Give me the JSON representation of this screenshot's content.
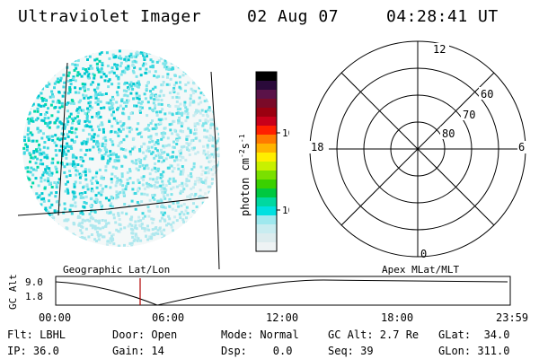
{
  "header": {
    "title": "Ultraviolet Imager",
    "date": "02 Aug 07",
    "time": "04:28:41 UT"
  },
  "colorbar": {
    "unit_label": "photon cm",
    "unit_sup1": "-2",
    "unit_mid": "s",
    "unit_sup2": "-1",
    "ticks": [
      "100",
      "10"
    ],
    "colors": [
      "#000000",
      "#2a0a3a",
      "#5a1248",
      "#7a0a28",
      "#9a0010",
      "#c8001a",
      "#ff2000",
      "#ff7a00",
      "#ffb400",
      "#ffee00",
      "#c8f000",
      "#7ae000",
      "#3ad000",
      "#00c840",
      "#00d8a0",
      "#00e0e0",
      "#9ee8ee",
      "#c8ecf0",
      "#dcecee",
      "#eef3f4"
    ]
  },
  "polar": {
    "lat_labels": [
      "60",
      "70",
      "80"
    ],
    "mlt_labels": {
      "top": "12",
      "left": "18",
      "right": "6",
      "bottom": "0"
    }
  },
  "altitude_plot": {
    "title_left": "Geographic Lat/Lon",
    "title_right": "Apex MLat/MLT",
    "ylabel": "GC Alt",
    "y_ticks": [
      "9.0",
      "1.8"
    ],
    "x_ticks": [
      "00:00",
      "06:00",
      "12:00",
      "18:00",
      "23:59"
    ],
    "current_time_marker_color": "#b00000"
  },
  "status": {
    "flt": "Flt: LBHL",
    "door": "Door: Open",
    "mode": "Mode: Normal",
    "gc_alt": "GC Alt: 2.7 Re",
    "glat": "GLat:  34.0",
    "ip": "IP: 36.0",
    "gain": "Gain: 14",
    "dsp": "Dsp:    0.0",
    "seq": "Seq: 39",
    "glon": "GLon: 311.0"
  }
}
